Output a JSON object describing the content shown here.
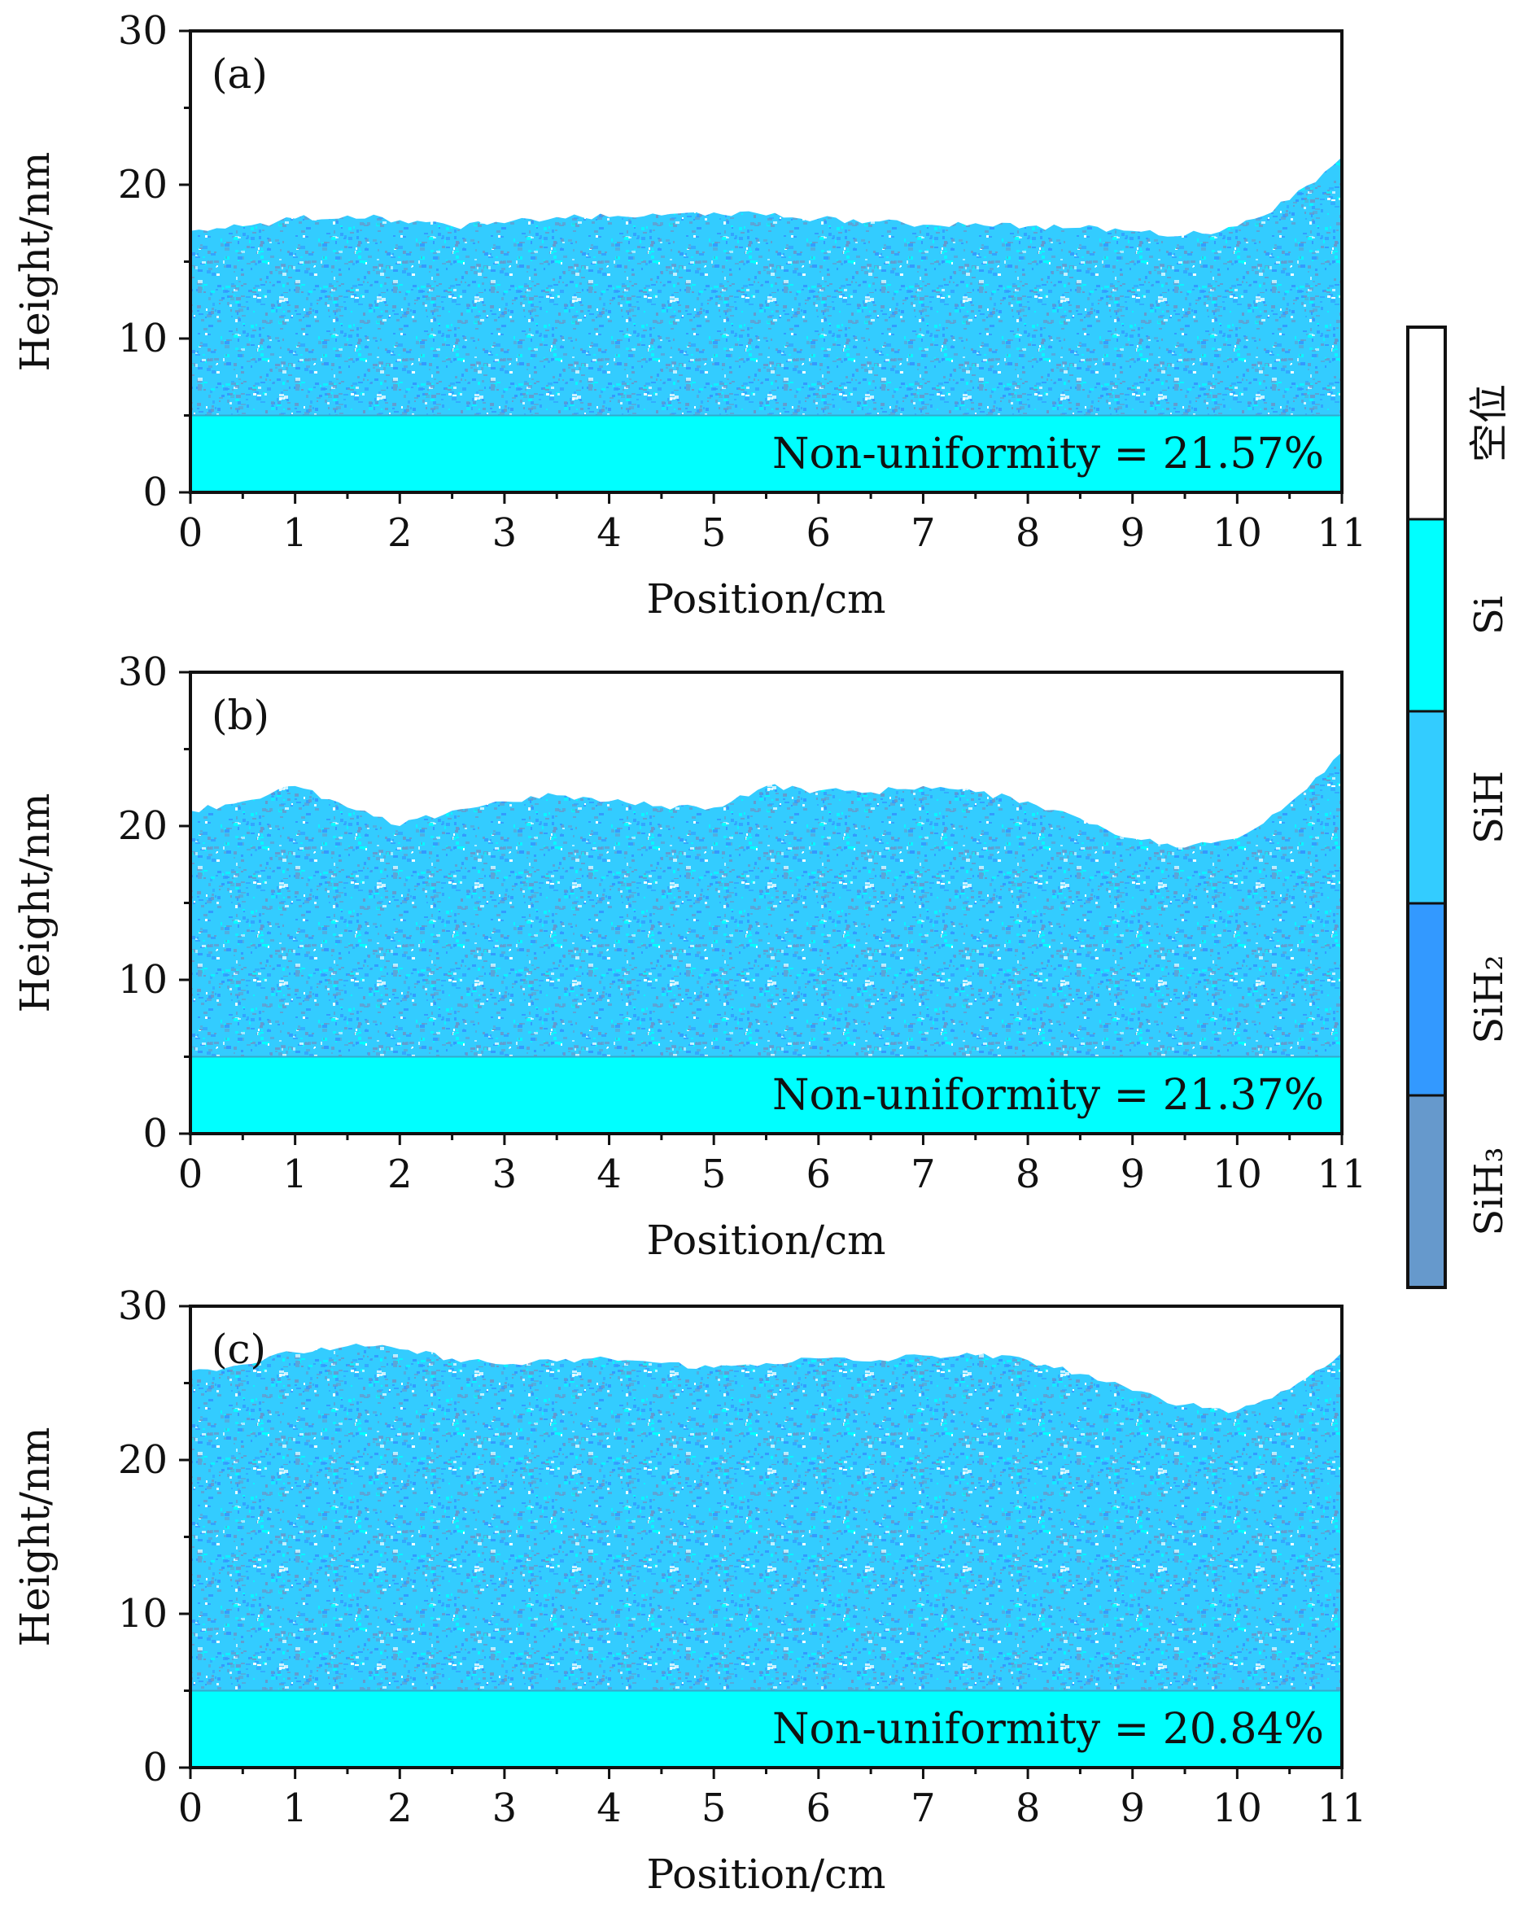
{
  "chart_data": [
    {
      "type": "area",
      "panel_label": "(a)",
      "xlabel": "Position/cm",
      "ylabel": "Height/nm",
      "xlim": [
        0,
        11
      ],
      "ylim": [
        0,
        30
      ],
      "xticks": [
        "0",
        "1",
        "2",
        "3",
        "4",
        "5",
        "6",
        "7",
        "8",
        "9",
        "10",
        "11"
      ],
      "yticks": [
        "0",
        "10",
        "20",
        "30"
      ],
      "substrate_height": 5,
      "annotation": "Non-uniformity = 21.57%",
      "surface": {
        "x": [
          0,
          0.5,
          1,
          1.5,
          2,
          2.5,
          3,
          3.5,
          4,
          4.5,
          5,
          5.5,
          6,
          6.5,
          7,
          7.5,
          8,
          8.5,
          9,
          9.5,
          10,
          10.5,
          11
        ],
        "y": [
          17.0,
          17.3,
          17.8,
          18.0,
          17.7,
          17.3,
          17.5,
          17.9,
          17.9,
          18.0,
          18.2,
          18.0,
          17.8,
          17.6,
          17.4,
          17.5,
          17.3,
          17.2,
          17.0,
          16.7,
          17.3,
          19.0,
          21.8
        ]
      },
      "legend": "none",
      "grid": false
    },
    {
      "type": "area",
      "panel_label": "(b)",
      "xlabel": "Position/cm",
      "ylabel": "Height/nm",
      "xlim": [
        0,
        11
      ],
      "ylim": [
        0,
        30
      ],
      "xticks": [
        "0",
        "1",
        "2",
        "3",
        "4",
        "5",
        "6",
        "7",
        "8",
        "9",
        "10",
        "11"
      ],
      "yticks": [
        "0",
        "10",
        "20",
        "30"
      ],
      "substrate_height": 5,
      "annotation": "Non-uniformity = 21.37%",
      "surface": {
        "x": [
          0,
          0.5,
          1,
          1.5,
          2,
          2.5,
          3,
          3.5,
          4,
          4.5,
          5,
          5.5,
          6,
          6.5,
          7,
          7.5,
          8,
          8.5,
          9,
          9.5,
          10,
          10.5,
          11
        ],
        "y": [
          21.0,
          21.6,
          22.6,
          21.2,
          20.0,
          21.0,
          21.6,
          22.0,
          21.6,
          21.3,
          21.2,
          22.6,
          22.3,
          22.2,
          22.6,
          22.2,
          21.6,
          20.5,
          19.2,
          18.6,
          19.2,
          21.5,
          24.8
        ]
      },
      "legend": "none",
      "grid": false
    },
    {
      "type": "area",
      "panel_label": "(c)",
      "xlabel": "Position/cm",
      "ylabel": "Height/nm",
      "xlim": [
        0,
        11
      ],
      "ylim": [
        0,
        30
      ],
      "xticks": [
        "0",
        "1",
        "2",
        "3",
        "4",
        "5",
        "6",
        "7",
        "8",
        "9",
        "10",
        "11"
      ],
      "yticks": [
        "0",
        "10",
        "20",
        "30"
      ],
      "substrate_height": 5,
      "annotation": "Non-uniformity = 20.84%",
      "surface": {
        "x": [
          0,
          0.5,
          1,
          1.5,
          2,
          2.5,
          3,
          3.5,
          4,
          4.5,
          5,
          5.5,
          6,
          6.5,
          7,
          7.5,
          8,
          8.5,
          9,
          9.5,
          10,
          10.5,
          11
        ],
        "y": [
          25.8,
          26.2,
          27.0,
          27.4,
          27.2,
          26.6,
          26.2,
          26.4,
          26.6,
          26.3,
          26.0,
          26.3,
          26.6,
          26.4,
          26.8,
          26.8,
          26.5,
          25.6,
          24.5,
          23.6,
          23.2,
          24.6,
          27.0
        ]
      },
      "legend": "none",
      "grid": false
    }
  ],
  "colorbar": {
    "position": "right",
    "segments": [
      {
        "label": "空位",
        "color": "#ffffff"
      },
      {
        "label": "Si",
        "color": "#00ffff"
      },
      {
        "label": "SiH",
        "color": "#33ccff"
      },
      {
        "label": "SiH₂",
        "color": "#3399ff"
      },
      {
        "label": "SiH₃",
        "color": "#6699cc"
      }
    ]
  },
  "colors": {
    "vacancy": "#ffffff",
    "si": "#00ffff",
    "sih": "#33ccff",
    "sih2": "#3399ff",
    "sih3": "#6699cc",
    "substrate": "#00ffff"
  }
}
